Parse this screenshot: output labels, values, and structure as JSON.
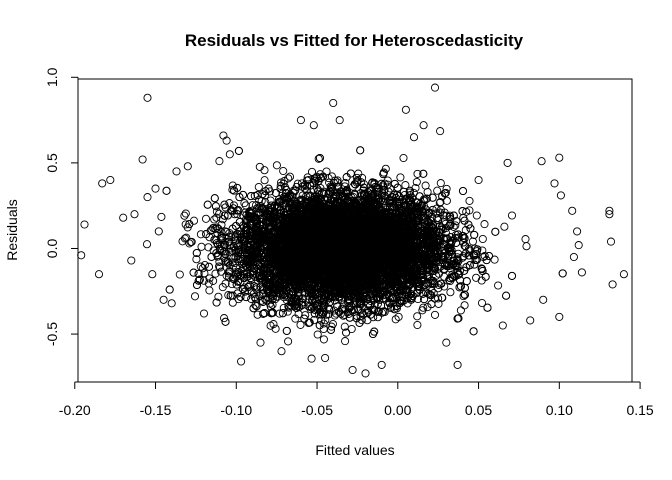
{
  "chart_data": {
    "type": "scatter",
    "title": "Residuals vs Fitted for Heteroscedasticity",
    "xlabel": "Fitted values",
    "ylabel": "Residuals",
    "xlim": [
      -0.198,
      0.145
    ],
    "ylim": [
      -0.78,
      0.99
    ],
    "xticks": [
      -0.2,
      -0.15,
      -0.1,
      -0.05,
      0.0,
      0.05,
      0.1,
      0.15
    ],
    "xtick_labels": [
      "-0.20",
      "-0.15",
      "-0.10",
      "-0.05",
      "0.00",
      "0.05",
      "0.10",
      "0.15"
    ],
    "yticks": [
      -0.5,
      0.0,
      0.5,
      1.0
    ],
    "ytick_labels": [
      "-0.5",
      "0.0",
      "0.5",
      "1.0"
    ],
    "marker": "open-circle",
    "grid": false,
    "n_points_approx": 20000,
    "bulk_distribution": {
      "x_center": -0.035,
      "x_sd": 0.032,
      "y_center": 0.0,
      "y_sd": 0.16
    },
    "points": [
      [
        -0.155,
        0.88
      ],
      [
        -0.183,
        0.38
      ],
      [
        -0.178,
        0.4
      ],
      [
        -0.194,
        0.14
      ],
      [
        -0.196,
        -0.04
      ],
      [
        -0.185,
        -0.15
      ],
      [
        -0.17,
        0.18
      ],
      [
        -0.163,
        0.2
      ],
      [
        -0.158,
        0.52
      ],
      [
        -0.155,
        0.3
      ],
      [
        -0.165,
        -0.07
      ],
      [
        -0.145,
        -0.3
      ],
      [
        -0.14,
        -0.32
      ],
      [
        -0.137,
        0.45
      ],
      [
        -0.13,
        0.48
      ],
      [
        -0.12,
        -0.38
      ],
      [
        -0.108,
        0.66
      ],
      [
        -0.106,
        0.63
      ],
      [
        -0.104,
        0.55
      ],
      [
        -0.097,
        -0.66
      ],
      [
        -0.085,
        -0.55
      ],
      [
        -0.072,
        -0.6
      ],
      [
        -0.06,
        0.75
      ],
      [
        -0.052,
        0.72
      ],
      [
        -0.045,
        -0.64
      ],
      [
        -0.04,
        0.85
      ],
      [
        -0.036,
        0.75
      ],
      [
        -0.028,
        -0.71
      ],
      [
        -0.02,
        -0.73
      ],
      [
        -0.01,
        -0.68
      ],
      [
        0.005,
        0.81
      ],
      [
        0.01,
        0.65
      ],
      [
        0.016,
        0.72
      ],
      [
        0.023,
        0.94
      ],
      [
        0.03,
        -0.55
      ],
      [
        0.037,
        -0.68
      ],
      [
        0.05,
        0.4
      ],
      [
        0.065,
        -0.45
      ],
      [
        0.068,
        0.5
      ],
      [
        0.075,
        0.4
      ],
      [
        0.082,
        -0.42
      ],
      [
        0.089,
        0.51
      ],
      [
        0.097,
        0.38
      ],
      [
        0.1,
        0.53
      ],
      [
        0.101,
        0.31
      ],
      [
        0.1,
        -0.4
      ],
      [
        0.108,
        0.22
      ],
      [
        0.109,
        -0.05
      ],
      [
        0.111,
        0.1
      ],
      [
        0.112,
        0.02
      ],
      [
        0.114,
        -0.14
      ],
      [
        0.131,
        0.22
      ],
      [
        0.131,
        0.2
      ],
      [
        0.132,
        0.04
      ],
      [
        0.133,
        -0.21
      ],
      [
        0.14,
        -0.15
      ],
      [
        -0.15,
        0.35
      ],
      [
        -0.148,
        0.1
      ],
      [
        -0.152,
        -0.15
      ],
      [
        0.09,
        -0.3
      ]
    ]
  }
}
